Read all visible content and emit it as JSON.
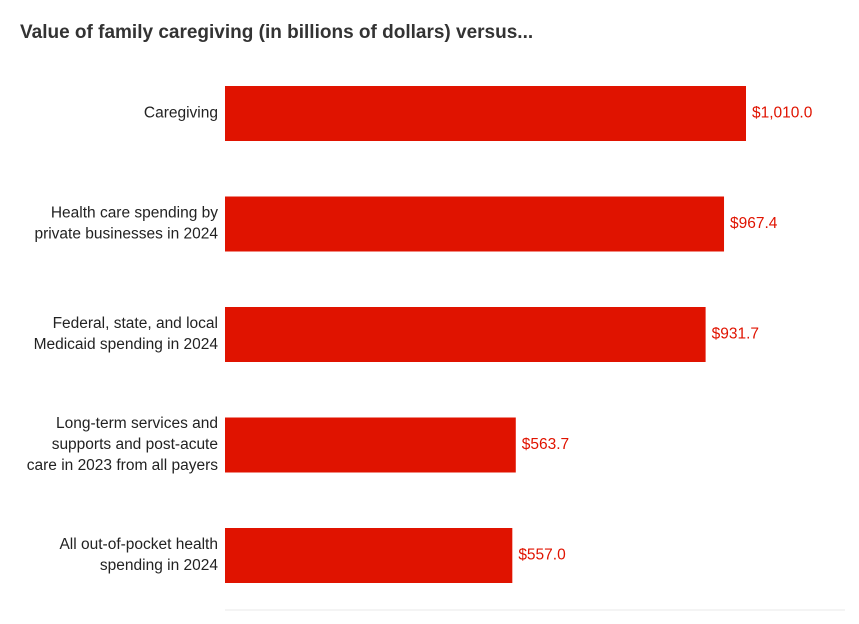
{
  "chart_data": {
    "type": "bar",
    "orientation": "horizontal",
    "title": "Value of family caregiving (in billions of dollars) versus...",
    "xlabel": "",
    "ylabel": "",
    "xlim": [
      0,
      1010
    ],
    "bar_color": "#e01300",
    "label_color": "#e01300",
    "categories": [
      [
        "Caregiving"
      ],
      [
        "Health care spending by",
        "private businesses in 2024"
      ],
      [
        "Federal, state, and local",
        "Medicaid spending in 2024"
      ],
      [
        "Long-term services and",
        "supports and post-acute",
        "care in 2023 from all payers"
      ],
      [
        "All out-of-pocket health",
        "spending in 2024"
      ]
    ],
    "values": [
      1010.0,
      967.4,
      931.7,
      563.7,
      557.0
    ],
    "value_labels": [
      "$1,010.0",
      "$967.4",
      "$931.7",
      "$563.7",
      "$557.0"
    ]
  }
}
